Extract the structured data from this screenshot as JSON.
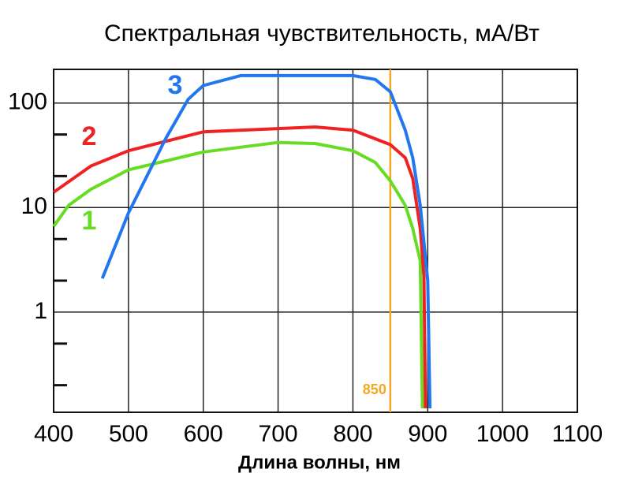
{
  "chart_data": {
    "type": "line",
    "title": "Спектральная чувствительность, мА/Вт",
    "xlabel": "Длина волны, нм",
    "xlim": [
      400,
      1100
    ],
    "xticks": [
      400,
      500,
      600,
      700,
      800,
      900,
      1000,
      1100
    ],
    "ylim": [
      0.11,
      210
    ],
    "yticks": [
      1,
      10,
      100
    ],
    "yminor_ticks": [
      0.2,
      0.5,
      2,
      5,
      20,
      50
    ],
    "log_y": true,
    "grid": true,
    "vline": 850,
    "vline_color": "#f5a623",
    "series": [
      {
        "name": "1",
        "color": "#66dd22",
        "x": [
          400,
          420,
          450,
          500,
          600,
          700,
          750,
          800,
          830,
          850,
          870,
          880,
          890,
          893
        ],
        "values": [
          6.6,
          10.5,
          15,
          23,
          34,
          42,
          41,
          35,
          27,
          18,
          10.5,
          6.3,
          3.1,
          0.12
        ]
      },
      {
        "name": "2",
        "color": "#ee2222",
        "x": [
          400,
          450,
          500,
          600,
          700,
          750,
          800,
          850,
          870,
          880,
          890,
          895,
          897
        ],
        "values": [
          14,
          25,
          35,
          53,
          57,
          59,
          55,
          40,
          30,
          19,
          6.3,
          2.2,
          0.12
        ]
      },
      {
        "name": "3",
        "color": "#2277ee",
        "x": [
          465,
          500,
          550,
          580,
          600,
          650,
          700,
          800,
          830,
          850,
          870,
          880,
          890,
          900,
          903
        ],
        "values": [
          2.1,
          8.9,
          46,
          109,
          147,
          183,
          183,
          183,
          168,
          128,
          55,
          30,
          10.5,
          2.0,
          0.12
        ]
      }
    ]
  }
}
